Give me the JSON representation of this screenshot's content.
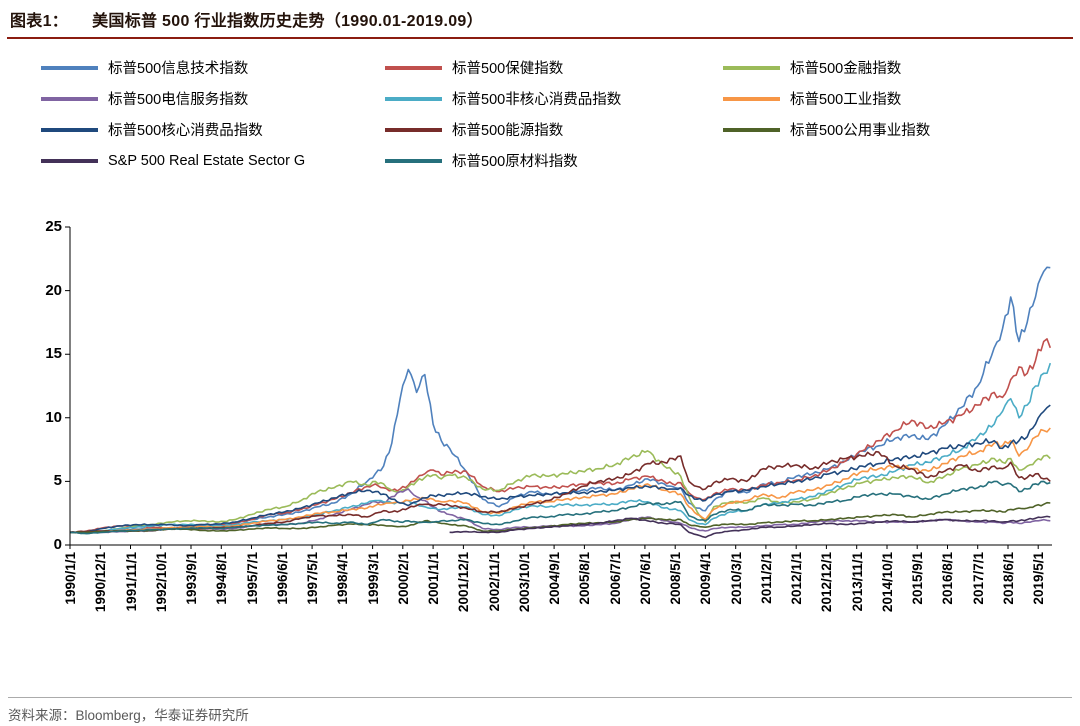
{
  "header": {
    "figure_label": "图表1：",
    "figure_title": "美国标普 500 行业指数历史走势（1990.01-2019.09）"
  },
  "footer": {
    "source_text": "资料来源：Bloomberg，华泰证券研究所"
  },
  "colors": {
    "title_rule": "#8B1C10",
    "axis": "#000000",
    "footer_rule": "#ABABAB"
  },
  "chart_data": {
    "type": "line",
    "title": "美国标普500行业指数历史走势（1990.01-2019.09）",
    "xlabel": "",
    "ylabel": "",
    "ylim": [
      0,
      25
    ],
    "y_ticks": [
      0,
      5,
      10,
      15,
      20,
      25
    ],
    "x_range": [
      1990.0,
      2019.75
    ],
    "grid": false,
    "legend_position": "top",
    "x_tick_labels": [
      "1990/1/1",
      "1990/12/1",
      "1991/11/1",
      "1992/10/1",
      "1993/9/1",
      "1994/8/1",
      "1995/7/1",
      "1996/6/1",
      "1997/5/1",
      "1998/4/1",
      "1999/3/1",
      "2000/2/1",
      "2001/1/1",
      "2001/12/1",
      "2002/11/1",
      "2003/10/1",
      "2004/9/1",
      "2005/8/1",
      "2006/7/1",
      "2007/6/1",
      "2008/5/1",
      "2009/4/1",
      "2010/3/1",
      "2011/2/1",
      "2012/1/1",
      "2012/12/1",
      "2013/11/1",
      "2014/10/1",
      "2015/9/1",
      "2016/8/1",
      "2017/7/1",
      "2018/6/1",
      "2019/5/1"
    ],
    "x": [
      1990.0,
      1990.5,
      1991.0,
      1991.5,
      1992.0,
      1992.5,
      1993.0,
      1993.5,
      1994.0,
      1994.5,
      1995.0,
      1995.5,
      1996.0,
      1996.5,
      1997.0,
      1997.5,
      1998.0,
      1998.5,
      1999.0,
      1999.25,
      1999.5,
      1999.75,
      2000.0,
      2000.25,
      2000.5,
      2000.75,
      2001.0,
      2001.25,
      2001.5,
      2002.0,
      2002.5,
      2003.0,
      2003.5,
      2004.0,
      2004.5,
      2005.0,
      2005.5,
      2006.0,
      2006.5,
      2007.0,
      2007.5,
      2008.0,
      2008.25,
      2008.5,
      2008.75,
      2009.0,
      2009.25,
      2009.5,
      2010.0,
      2010.5,
      2011.0,
      2011.5,
      2012.0,
      2012.5,
      2013.0,
      2013.5,
      2014.0,
      2014.5,
      2015.0,
      2015.5,
      2016.0,
      2016.5,
      2017.0,
      2017.5,
      2018.0,
      2018.25,
      2018.5,
      2018.75,
      2019.0,
      2019.25,
      2019.5,
      2019.7
    ],
    "series": [
      {
        "name": "标普500信息技术指数",
        "color": "#4F81BD",
        "values": [
          1.0,
          1.0,
          1.1,
          1.2,
          1.25,
          1.3,
          1.35,
          1.4,
          1.5,
          1.55,
          1.7,
          2.0,
          2.2,
          2.4,
          2.6,
          3.0,
          3.3,
          4.0,
          5.0,
          5.6,
          6.2,
          8.0,
          11.5,
          13.8,
          12.0,
          13.4,
          9.5,
          8.2,
          7.6,
          5.8,
          3.6,
          3.0,
          3.8,
          4.2,
          4.0,
          4.1,
          4.3,
          4.5,
          4.3,
          4.7,
          5.2,
          4.8,
          4.6,
          4.5,
          3.3,
          2.9,
          2.7,
          3.5,
          4.3,
          4.1,
          4.8,
          4.9,
          5.4,
          5.6,
          6.0,
          6.6,
          7.4,
          7.8,
          8.4,
          8.6,
          8.3,
          9.4,
          10.8,
          12.5,
          15.5,
          17.0,
          19.5,
          16.0,
          17.5,
          19.5,
          21.5,
          21.8
        ]
      },
      {
        "name": "标普500保健指数",
        "color": "#C0504D",
        "values": [
          1.0,
          1.1,
          1.35,
          1.5,
          1.5,
          1.4,
          1.3,
          1.3,
          1.4,
          1.5,
          1.7,
          2.0,
          2.4,
          2.5,
          2.8,
          3.2,
          3.6,
          4.1,
          4.6,
          4.8,
          4.5,
          4.3,
          4.4,
          4.7,
          5.2,
          5.6,
          5.9,
          5.5,
          5.7,
          5.8,
          4.6,
          4.2,
          4.5,
          4.6,
          4.5,
          4.6,
          4.8,
          4.9,
          4.8,
          5.2,
          5.4,
          5.0,
          4.8,
          4.9,
          4.1,
          3.7,
          3.6,
          4.0,
          4.4,
          4.3,
          4.7,
          4.9,
          5.1,
          5.4,
          5.9,
          6.6,
          7.4,
          8.2,
          9.0,
          9.8,
          9.2,
          9.6,
          10.2,
          11.0,
          12.0,
          11.6,
          13.0,
          14.0,
          13.5,
          14.5,
          16.0,
          15.5
        ]
      },
      {
        "name": "标普500金融指数",
        "color": "#9BBB59",
        "values": [
          1.0,
          0.9,
          1.1,
          1.3,
          1.5,
          1.6,
          1.8,
          1.9,
          1.9,
          1.8,
          2.0,
          2.4,
          2.8,
          3.0,
          3.5,
          4.2,
          4.5,
          5.0,
          4.7,
          5.0,
          4.8,
          4.3,
          4.2,
          4.6,
          5.0,
          5.3,
          5.5,
          5.2,
          5.5,
          5.3,
          4.4,
          4.3,
          5.0,
          5.5,
          5.4,
          5.6,
          5.8,
          6.0,
          6.3,
          6.9,
          7.4,
          6.2,
          5.8,
          5.4,
          3.8,
          2.6,
          1.8,
          3.0,
          3.4,
          3.3,
          3.7,
          3.3,
          3.4,
          3.6,
          4.1,
          4.5,
          4.9,
          5.1,
          5.3,
          5.4,
          4.9,
          5.4,
          6.0,
          6.3,
          6.8,
          6.5,
          6.8,
          5.9,
          6.2,
          6.6,
          7.0,
          6.8
        ]
      },
      {
        "name": "标普500电信服务指数",
        "color": "#8064A2",
        "values": [
          1.0,
          0.95,
          1.0,
          1.05,
          1.1,
          1.1,
          1.3,
          1.3,
          1.3,
          1.25,
          1.3,
          1.5,
          1.7,
          1.6,
          1.7,
          2.0,
          2.4,
          2.8,
          3.2,
          3.4,
          3.3,
          3.8,
          4.2,
          4.4,
          3.8,
          3.5,
          3.0,
          2.6,
          2.4,
          2.0,
          1.3,
          1.2,
          1.4,
          1.4,
          1.5,
          1.5,
          1.5,
          1.6,
          1.7,
          2.0,
          2.2,
          1.9,
          1.8,
          1.7,
          1.4,
          1.2,
          1.1,
          1.3,
          1.4,
          1.4,
          1.5,
          1.6,
          1.6,
          1.8,
          1.9,
          1.9,
          1.9,
          1.8,
          1.8,
          1.8,
          1.9,
          2.0,
          1.9,
          1.8,
          1.8,
          1.7,
          1.8,
          1.7,
          1.8,
          1.9,
          2.0,
          1.9
        ]
      },
      {
        "name": "标普500非核心消费品指数",
        "color": "#4BACC6",
        "values": [
          1.0,
          0.9,
          1.1,
          1.3,
          1.4,
          1.5,
          1.6,
          1.6,
          1.6,
          1.5,
          1.6,
          1.8,
          1.9,
          2.0,
          2.1,
          2.4,
          2.7,
          3.0,
          3.3,
          3.5,
          3.4,
          3.3,
          3.3,
          3.5,
          3.2,
          3.0,
          2.9,
          2.8,
          2.9,
          3.0,
          2.4,
          2.3,
          2.8,
          3.1,
          3.0,
          3.2,
          3.1,
          3.2,
          3.2,
          3.5,
          3.4,
          2.9,
          2.8,
          2.7,
          2.0,
          1.7,
          1.6,
          2.1,
          2.6,
          2.7,
          3.2,
          3.3,
          3.6,
          3.8,
          4.3,
          4.8,
          5.3,
          5.4,
          5.8,
          6.3,
          6.5,
          7.0,
          7.5,
          8.5,
          9.5,
          10.5,
          11.5,
          10.0,
          11.0,
          12.5,
          13.5,
          14.3
        ]
      },
      {
        "name": "标普500工业指数",
        "color": "#F79646",
        "values": [
          1.0,
          0.95,
          1.05,
          1.15,
          1.2,
          1.25,
          1.35,
          1.4,
          1.45,
          1.4,
          1.5,
          1.7,
          1.9,
          2.0,
          2.2,
          2.5,
          2.6,
          2.8,
          2.9,
          3.1,
          3.2,
          3.3,
          3.3,
          3.5,
          3.6,
          3.7,
          3.6,
          3.4,
          3.5,
          3.3,
          2.6,
          2.5,
          3.0,
          3.4,
          3.4,
          3.6,
          3.7,
          3.9,
          4.0,
          4.4,
          4.8,
          4.3,
          4.2,
          4.0,
          3.0,
          2.4,
          2.0,
          2.8,
          3.3,
          3.5,
          4.0,
          3.7,
          4.2,
          4.3,
          4.7,
          5.2,
          5.8,
          6.0,
          6.2,
          6.0,
          5.8,
          6.4,
          7.0,
          7.3,
          8.0,
          7.8,
          8.2,
          7.0,
          7.5,
          8.5,
          9.0,
          9.2
        ]
      },
      {
        "name": "标普500核心消费品指数",
        "color": "#1F497D",
        "values": [
          1.0,
          1.05,
          1.3,
          1.5,
          1.6,
          1.6,
          1.6,
          1.5,
          1.6,
          1.65,
          1.8,
          2.1,
          2.4,
          2.6,
          2.9,
          3.3,
          3.7,
          4.1,
          4.3,
          4.2,
          4.0,
          3.6,
          3.3,
          3.1,
          3.4,
          3.7,
          3.9,
          3.9,
          4.0,
          4.1,
          3.8,
          3.6,
          3.8,
          3.9,
          4.0,
          4.1,
          4.1,
          4.2,
          4.3,
          4.5,
          4.6,
          4.5,
          4.4,
          4.5,
          3.9,
          3.6,
          3.5,
          3.9,
          4.2,
          4.3,
          4.6,
          4.8,
          5.0,
          5.2,
          5.6,
          5.8,
          6.2,
          6.4,
          6.8,
          6.9,
          7.2,
          7.6,
          7.8,
          8.0,
          8.2,
          7.6,
          8.0,
          8.2,
          8.5,
          9.5,
          10.5,
          11.0
        ]
      },
      {
        "name": "标普500能源指数",
        "color": "#772C2A",
        "values": [
          1.0,
          1.05,
          1.1,
          1.1,
          1.1,
          1.15,
          1.25,
          1.3,
          1.3,
          1.35,
          1.4,
          1.5,
          1.7,
          1.8,
          2.1,
          2.3,
          2.3,
          2.4,
          2.2,
          2.5,
          2.7,
          2.6,
          2.7,
          2.9,
          3.1,
          3.2,
          3.1,
          3.2,
          3.1,
          2.9,
          2.6,
          2.6,
          2.9,
          3.2,
          3.5,
          4.0,
          4.6,
          5.0,
          5.2,
          5.6,
          6.4,
          6.5,
          6.8,
          7.0,
          5.0,
          4.6,
          4.4,
          4.9,
          5.2,
          5.0,
          6.0,
          6.2,
          6.3,
          6.0,
          6.5,
          6.8,
          7.0,
          7.3,
          6.2,
          6.0,
          5.3,
          5.8,
          6.3,
          5.8,
          6.2,
          6.0,
          6.5,
          5.3,
          5.3,
          5.6,
          5.2,
          5.0
        ]
      },
      {
        "name": "标普500公用事业指数",
        "color": "#4F6228",
        "values": [
          1.0,
          1.0,
          1.05,
          1.1,
          1.1,
          1.15,
          1.25,
          1.25,
          1.15,
          1.1,
          1.15,
          1.25,
          1.35,
          1.3,
          1.3,
          1.4,
          1.55,
          1.65,
          1.6,
          1.6,
          1.55,
          1.5,
          1.45,
          1.5,
          1.7,
          1.9,
          1.8,
          1.7,
          1.6,
          1.5,
          1.1,
          1.1,
          1.25,
          1.35,
          1.45,
          1.6,
          1.7,
          1.75,
          1.8,
          2.0,
          2.1,
          2.0,
          1.95,
          2.0,
          1.6,
          1.5,
          1.4,
          1.55,
          1.65,
          1.6,
          1.75,
          1.8,
          1.9,
          1.9,
          2.0,
          2.1,
          2.2,
          2.3,
          2.4,
          2.2,
          2.4,
          2.6,
          2.6,
          2.7,
          2.7,
          2.6,
          2.8,
          2.9,
          2.9,
          3.1,
          3.2,
          3.3
        ]
      },
      {
        "name": "S&P 500 Real Estate Sector G",
        "color": "#433158",
        "values": [
          null,
          null,
          null,
          null,
          null,
          null,
          null,
          null,
          null,
          null,
          null,
          null,
          null,
          null,
          null,
          null,
          null,
          null,
          null,
          null,
          null,
          null,
          null,
          null,
          null,
          null,
          null,
          null,
          1.0,
          1.05,
          1.0,
          1.0,
          1.2,
          1.3,
          1.4,
          1.5,
          1.6,
          1.7,
          1.9,
          2.1,
          1.9,
          1.7,
          1.7,
          1.6,
          1.0,
          0.8,
          0.6,
          0.9,
          1.1,
          1.2,
          1.4,
          1.4,
          1.5,
          1.6,
          1.7,
          1.6,
          1.7,
          1.8,
          1.9,
          1.8,
          1.9,
          2.0,
          1.9,
          1.9,
          1.9,
          1.8,
          1.9,
          1.9,
          2.0,
          2.1,
          2.2,
          2.2
        ]
      },
      {
        "name": "标普500原材料指数",
        "color": "#26707C",
        "values": [
          1.0,
          0.9,
          1.0,
          1.1,
          1.15,
          1.2,
          1.25,
          1.3,
          1.35,
          1.3,
          1.4,
          1.5,
          1.55,
          1.6,
          1.7,
          1.8,
          1.7,
          1.8,
          1.6,
          1.8,
          2.0,
          1.9,
          1.8,
          1.9,
          1.8,
          1.8,
          1.8,
          1.9,
          1.9,
          2.0,
          1.7,
          1.6,
          1.9,
          2.2,
          2.2,
          2.4,
          2.4,
          2.6,
          2.7,
          3.0,
          3.3,
          3.2,
          3.3,
          3.4,
          2.3,
          2.0,
          1.9,
          2.4,
          2.8,
          2.7,
          3.2,
          3.1,
          3.2,
          3.1,
          3.4,
          3.5,
          3.9,
          4.0,
          4.0,
          3.8,
          3.6,
          4.0,
          4.4,
          4.5,
          5.0,
          4.7,
          4.8,
          4.2,
          4.4,
          4.8,
          5.0,
          4.9
        ]
      }
    ]
  }
}
